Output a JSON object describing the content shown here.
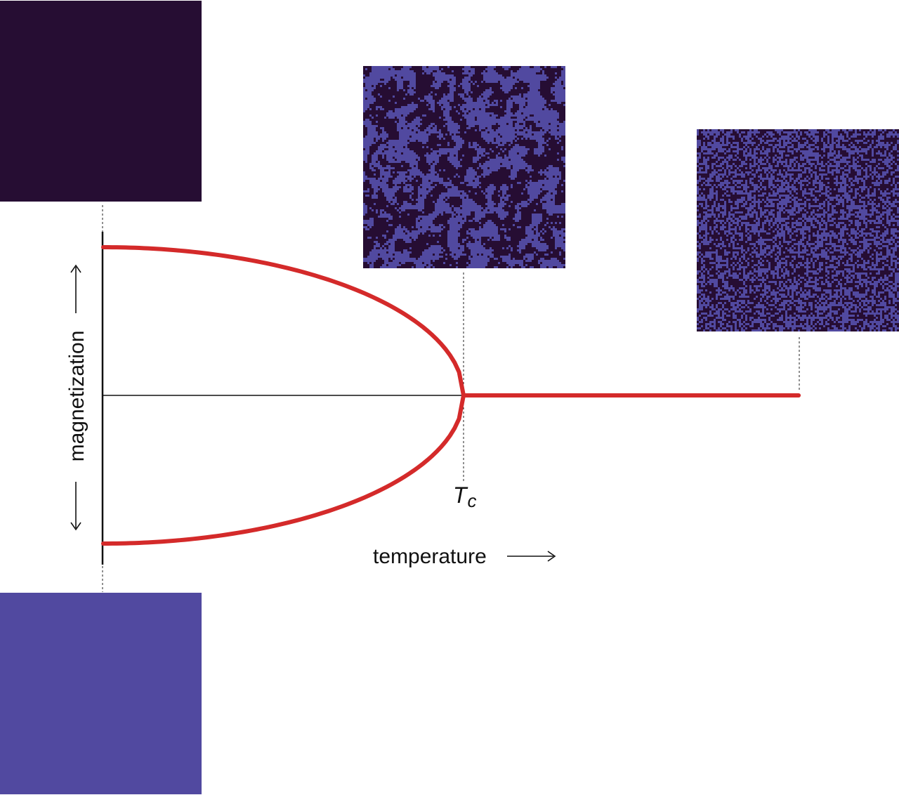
{
  "colors": {
    "spin_down": "#260d33",
    "spin_up": "#5149a0",
    "curve": "#d42a2a",
    "axis": "#111111"
  },
  "labels": {
    "y_axis": "magnetization",
    "x_axis": "temperature",
    "critical_symbol": "T",
    "critical_subscript": "c"
  },
  "panels": {
    "top_left": {
      "state": "fully ordered (down)",
      "up_fraction": 0.0,
      "cluster_size": 0
    },
    "bottom_left": {
      "state": "fully ordered (up)",
      "up_fraction": 1.0,
      "cluster_size": 0
    },
    "critical": {
      "state": "critical clusters",
      "up_fraction": 0.5,
      "cluster_size": 3
    },
    "high_t": {
      "state": "disordered",
      "up_fraction": 0.5,
      "cluster_size": 0
    }
  },
  "chart_data": {
    "type": "line",
    "x_critical": 1.0,
    "x_max": 1.93,
    "m0": 1.0,
    "beta": 0.5
  }
}
